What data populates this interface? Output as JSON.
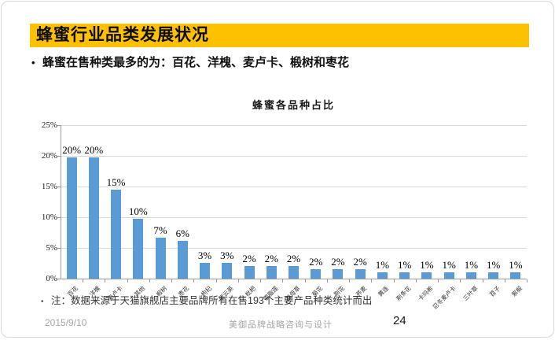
{
  "header": {
    "title": "蜂蜜行业品类发展状况"
  },
  "bullet": {
    "marker": "•",
    "text": "蜂蜜在售种类最多的为：百花、洋槐、麦卢卡、椴树和枣花"
  },
  "chart_data": {
    "type": "bar",
    "title": "蜂蜜各品种占比",
    "categories": [
      "百花",
      "洋槐",
      "麦卢卡",
      "其他",
      "椴树",
      "枣花",
      "枸杞",
      "紫云英",
      "枇杷",
      "雪脂莲",
      "益母草",
      "菊花",
      "荆花",
      "荞麦",
      "黄连",
      "荆条花",
      "卡玛希",
      "忍冬麦卢卡",
      "三叶草",
      "苕子",
      "紫椴"
    ],
    "values": [
      20,
      20,
      15,
      10,
      7,
      6,
      3,
      3,
      2,
      2,
      2,
      2,
      2,
      2,
      1,
      1,
      1,
      1,
      1,
      1,
      1
    ],
    "value_labels": [
      "20%",
      "20%",
      "15%",
      "10%",
      "7%",
      "6%",
      "3%",
      "3%",
      "2%",
      "2%",
      "2%",
      "2%",
      "2%",
      "2%",
      "1%",
      "1%",
      "1%",
      "1%",
      "1%",
      "1%",
      "1%"
    ],
    "display_heights": [
      19.7,
      19.7,
      14.5,
      9.8,
      6.7,
      6.2,
      2.6,
      2.6,
      2.1,
      2.1,
      2.1,
      1.5,
      1.5,
      1.5,
      1.0,
      1.0,
      1.0,
      1.0,
      1.0,
      1.0,
      1.0
    ],
    "xlabel": "",
    "ylabel": "",
    "ylim": [
      0,
      25
    ],
    "yticks": [
      "0%",
      "5%",
      "10%",
      "15%",
      "20%",
      "25%"
    ],
    "grid": true,
    "legend": false,
    "bar_color": "#5B9BD5"
  },
  "note": {
    "marker": "•",
    "text": "注：数据来源于天猫旗舰店主要品牌所有在售193个主要产品种类统计而出"
  },
  "footer": {
    "date": "2015/9/10",
    "company": "美御品牌战略咨询与设计",
    "page": "24"
  },
  "colors": {
    "banner": "#FDC101",
    "bar": "#5B9BD5",
    "grid": "#D9D9D9",
    "axis": "#9C9C9C",
    "footer_text": "#A6A6A6"
  }
}
